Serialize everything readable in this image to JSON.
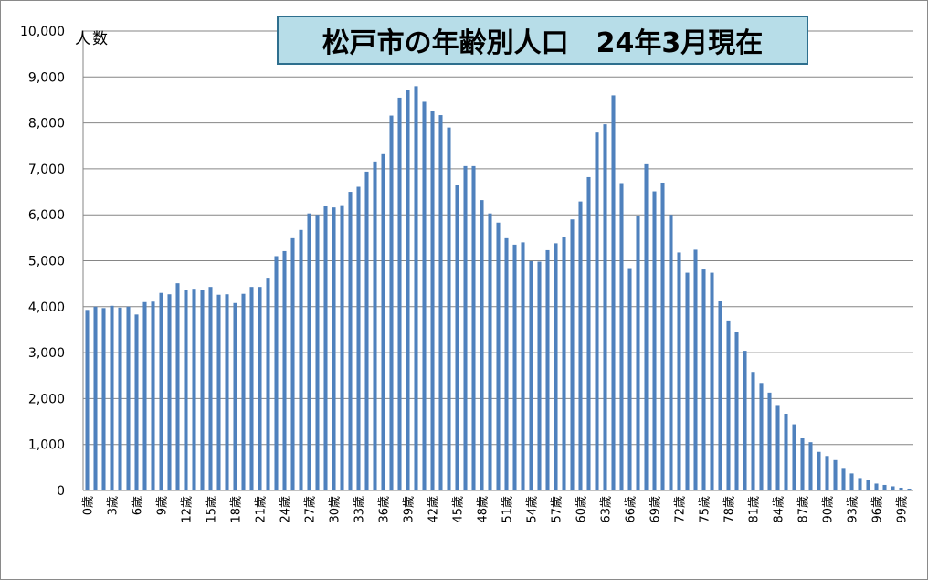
{
  "chart_data": {
    "type": "bar",
    "title": "松戸市の年齢別人口　24年3月現在",
    "ylabel": "人数",
    "xlabel": "",
    "ylim": [
      0,
      10000
    ],
    "grid": true,
    "y_ticks": [
      "0",
      "1,000",
      "2,000",
      "3,000",
      "4,000",
      "5,000",
      "6,000",
      "7,000",
      "8,000",
      "9,000",
      "10,000"
    ],
    "categories": [
      "0歳",
      "1歳",
      "2歳",
      "3歳",
      "4歳",
      "5歳",
      "6歳",
      "7歳",
      "8歳",
      "9歳",
      "10歳",
      "11歳",
      "12歳",
      "13歳",
      "14歳",
      "15歳",
      "16歳",
      "17歳",
      "18歳",
      "19歳",
      "20歳",
      "21歳",
      "22歳",
      "23歳",
      "24歳",
      "25歳",
      "26歳",
      "27歳",
      "28歳",
      "29歳",
      "30歳",
      "31歳",
      "32歳",
      "33歳",
      "34歳",
      "35歳",
      "36歳",
      "37歳",
      "38歳",
      "39歳",
      "40歳",
      "41歳",
      "42歳",
      "43歳",
      "44歳",
      "45歳",
      "46歳",
      "47歳",
      "48歳",
      "49歳",
      "50歳",
      "51歳",
      "52歳",
      "53歳",
      "54歳",
      "55歳",
      "56歳",
      "57歳",
      "58歳",
      "59歳",
      "60歳",
      "61歳",
      "62歳",
      "63歳",
      "64歳",
      "65歳",
      "66歳",
      "67歳",
      "68歳",
      "69歳",
      "70歳",
      "71歳",
      "72歳",
      "73歳",
      "74歳",
      "75歳",
      "76歳",
      "77歳",
      "78歳",
      "79歳",
      "80歳",
      "81歳",
      "82歳",
      "83歳",
      "84歳",
      "85歳",
      "86歳",
      "87歳",
      "88歳",
      "89歳",
      "90歳",
      "91歳",
      "92歳",
      "93歳",
      "94歳",
      "95歳",
      "96歳",
      "97歳",
      "98歳",
      "99歳",
      "100歳"
    ],
    "x_tick_labels": [
      "0歳",
      "3歳",
      "6歳",
      "9歳",
      "12歳",
      "15歳",
      "18歳",
      "21歳",
      "24歳",
      "27歳",
      "30歳",
      "33歳",
      "36歳",
      "39歳",
      "42歳",
      "45歳",
      "48歳",
      "51歳",
      "54歳",
      "57歳",
      "60歳",
      "63歳",
      "66歳",
      "69歳",
      "72歳",
      "75歳",
      "78歳",
      "81歳",
      "84歳",
      "87歳",
      "90歳",
      "93歳",
      "96歳",
      "99歳"
    ],
    "values": [
      3930,
      4000,
      3970,
      4020,
      3980,
      4000,
      3830,
      4100,
      4110,
      4300,
      4270,
      4510,
      4360,
      4390,
      4370,
      4430,
      4260,
      4270,
      4080,
      4280,
      4430,
      4430,
      4630,
      5100,
      5210,
      5490,
      5670,
      6030,
      6000,
      6190,
      6160,
      6210,
      6500,
      6610,
      6940,
      7160,
      7320,
      8160,
      8550,
      8710,
      8800,
      8460,
      8270,
      8170,
      7900,
      6650,
      7060,
      7060,
      6320,
      6030,
      5830,
      5490,
      5350,
      5400,
      4990,
      4980,
      5230,
      5380,
      5510,
      5900,
      6290,
      6820,
      7790,
      7970,
      8600,
      6690,
      4840,
      5980,
      7100,
      6510,
      6700,
      6000,
      5180,
      4740,
      5240,
      4810,
      4740,
      4120,
      3700,
      3440,
      3040,
      2580,
      2340,
      2130,
      1860,
      1670,
      1440,
      1150,
      1050,
      840,
      750,
      660,
      490,
      370,
      270,
      230,
      150,
      120,
      90,
      60,
      40
    ],
    "colors": {
      "bar": "#4f81bd",
      "grid": "#868686",
      "title_bg": "#b7dde8",
      "title_border": "#2e6f8e"
    }
  }
}
